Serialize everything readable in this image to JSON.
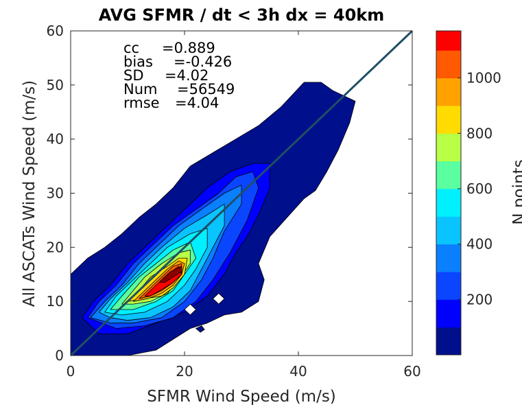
{
  "chart_data": {
    "type": "heatmap",
    "subtype": "filled-contour-density",
    "title": "AVG SFMR / dt < 3h dx = 40km",
    "xlabel": "SFMR Wind Speed (m/s)",
    "ylabel": "All ASCATs Wind Speed (m/s)",
    "xlim": [
      0,
      60
    ],
    "ylim": [
      0,
      60
    ],
    "x_ticks": [
      "0",
      "20",
      "40",
      "60"
    ],
    "y_ticks": [
      "0",
      "10",
      "20",
      "30",
      "40",
      "50",
      "60"
    ],
    "stats": [
      {
        "label": "cc",
        "value": "=0.889"
      },
      {
        "label": "bias",
        "value": "=-0.426"
      },
      {
        "label": "SD",
        "value": "=4.02"
      },
      {
        "label": "Num",
        "value": "=56549"
      },
      {
        "label": "rmse",
        "value": "=4.04"
      }
    ],
    "reference_line": {
      "x": [
        0,
        60
      ],
      "y": [
        0,
        60
      ],
      "color": "#1f4f66"
    },
    "colorbar": {
      "label": "N points",
      "range": [
        0,
        1170
      ],
      "ticks": [
        "200",
        "400",
        "600",
        "800",
        "1000"
      ],
      "tick_values": [
        200,
        400,
        600,
        800,
        1000
      ],
      "levels": [
        0,
        100,
        200,
        300,
        400,
        500,
        600,
        700,
        800,
        900,
        1000,
        1100,
        1170
      ],
      "colors": [
        "#000f8c",
        "#0000ff",
        "#0a45ff",
        "#0a7fff",
        "#0ac4ff",
        "#00f0ff",
        "#5affa0",
        "#b9ff45",
        "#ffdb00",
        "#ffa200",
        "#ff5a00",
        "#ff0000",
        "#8a0000"
      ]
    },
    "contours": [
      {
        "level": 1,
        "color": "#000f8c",
        "points": [
          [
            0,
            0
          ],
          [
            0,
            15
          ],
          [
            3,
            18
          ],
          [
            6,
            20
          ],
          [
            9,
            22.5
          ],
          [
            12,
            25.5
          ],
          [
            15,
            28
          ],
          [
            18,
            31
          ],
          [
            21,
            35
          ],
          [
            25,
            37.5
          ],
          [
            29,
            40
          ],
          [
            33,
            42.5
          ],
          [
            37,
            46
          ],
          [
            41,
            50.5
          ],
          [
            44,
            50.5
          ],
          [
            46,
            49
          ],
          [
            50,
            47
          ],
          [
            49,
            43
          ],
          [
            47,
            38
          ],
          [
            45,
            34
          ],
          [
            43,
            30.5
          ],
          [
            41,
            29
          ],
          [
            38,
            25.5
          ],
          [
            35,
            22
          ],
          [
            33,
            17
          ],
          [
            34,
            14
          ],
          [
            33,
            10
          ],
          [
            30,
            8
          ],
          [
            27,
            7.5
          ],
          [
            24,
            6
          ],
          [
            21,
            5
          ],
          [
            18,
            3
          ],
          [
            15,
            1
          ],
          [
            10,
            0
          ]
        ]
      },
      {
        "level": 2,
        "color": "#0000ff",
        "points": [
          [
            2,
            7
          ],
          [
            4,
            10
          ],
          [
            7,
            13
          ],
          [
            10,
            17
          ],
          [
            14,
            21
          ],
          [
            18,
            25
          ],
          [
            21,
            28
          ],
          [
            24,
            31
          ],
          [
            28,
            34
          ],
          [
            32,
            35.5
          ],
          [
            35,
            35.5
          ],
          [
            35,
            31
          ],
          [
            33,
            26
          ],
          [
            31,
            22
          ],
          [
            29,
            19
          ],
          [
            27,
            15
          ],
          [
            24,
            11
          ],
          [
            20,
            8
          ],
          [
            15,
            6
          ],
          [
            10,
            4
          ],
          [
            5,
            4
          ]
        ]
      },
      {
        "level": 3,
        "color": "#0a45ff",
        "points": [
          [
            3,
            7
          ],
          [
            5,
            10
          ],
          [
            8,
            13
          ],
          [
            11,
            17
          ],
          [
            15,
            21
          ],
          [
            18,
            24
          ],
          [
            22,
            27
          ],
          [
            26,
            30
          ],
          [
            29,
            33
          ],
          [
            32,
            34
          ],
          [
            33,
            31
          ],
          [
            31,
            25
          ],
          [
            28,
            19
          ],
          [
            25,
            14
          ],
          [
            22,
            10
          ],
          [
            18,
            7
          ],
          [
            13,
            5.5
          ],
          [
            8,
            5
          ]
        ]
      },
      {
        "level": 4,
        "color": "#0a7fff",
        "points": [
          [
            3.5,
            7
          ],
          [
            6,
            10
          ],
          [
            9,
            13
          ],
          [
            12,
            17
          ],
          [
            15,
            20
          ],
          [
            19,
            24
          ],
          [
            23,
            27
          ],
          [
            27,
            30
          ],
          [
            30,
            31.5
          ],
          [
            30,
            28
          ],
          [
            27,
            23
          ],
          [
            25,
            18
          ],
          [
            23,
            14
          ],
          [
            20,
            10
          ],
          [
            16,
            7
          ],
          [
            11,
            6
          ],
          [
            7,
            6
          ]
        ]
      },
      {
        "level": 5,
        "color": "#0ac4ff",
        "points": [
          [
            5,
            8
          ],
          [
            7,
            10.5
          ],
          [
            10,
            13.5
          ],
          [
            13,
            17
          ],
          [
            16,
            20
          ],
          [
            20,
            23.5
          ],
          [
            24,
            26
          ],
          [
            27,
            28
          ],
          [
            27,
            24
          ],
          [
            25,
            20
          ],
          [
            23,
            16
          ],
          [
            21,
            12
          ],
          [
            18,
            9
          ],
          [
            14,
            7
          ],
          [
            10,
            6.5
          ],
          [
            7,
            7
          ]
        ]
      },
      {
        "level": 6,
        "color": "#00f0ff",
        "points": [
          [
            6,
            8
          ],
          [
            8,
            11
          ],
          [
            11,
            14
          ],
          [
            14,
            17
          ],
          [
            17,
            20
          ],
          [
            21,
            22.5
          ],
          [
            24,
            23.5
          ],
          [
            24,
            20
          ],
          [
            22,
            16
          ],
          [
            20,
            13
          ],
          [
            17,
            10
          ],
          [
            13,
            8
          ],
          [
            9,
            7.5
          ]
        ]
      },
      {
        "level": 7,
        "color": "#5affa0",
        "points": [
          [
            7,
            8.5
          ],
          [
            9,
            11
          ],
          [
            12,
            14.5
          ],
          [
            15,
            17
          ],
          [
            18,
            19.5
          ],
          [
            21,
            21
          ],
          [
            22,
            18
          ],
          [
            20,
            15
          ],
          [
            18,
            12
          ],
          [
            15,
            10
          ],
          [
            11,
            8.5
          ]
        ]
      },
      {
        "level": 8,
        "color": "#b9ff45",
        "points": [
          [
            9,
            9.5
          ],
          [
            11,
            12
          ],
          [
            13,
            14.5
          ],
          [
            16,
            17
          ],
          [
            19,
            19
          ],
          [
            21,
            19.5
          ],
          [
            21,
            17
          ],
          [
            19,
            14
          ],
          [
            17,
            11.5
          ],
          [
            14,
            10
          ],
          [
            11,
            9.5
          ]
        ]
      },
      {
        "level": 9,
        "color": "#ffdb00",
        "points": [
          [
            10,
            10
          ],
          [
            12,
            12
          ],
          [
            14,
            14.5
          ],
          [
            17,
            16.5
          ],
          [
            19,
            18
          ],
          [
            20.5,
            18
          ],
          [
            20,
            15
          ],
          [
            18,
            12.5
          ],
          [
            16,
            11
          ],
          [
            13,
            10.5
          ]
        ]
      },
      {
        "level": 10,
        "color": "#ffa200",
        "points": [
          [
            11,
            10
          ],
          [
            13,
            12
          ],
          [
            15,
            14
          ],
          [
            17,
            16
          ],
          [
            19,
            17.5
          ],
          [
            20,
            17
          ],
          [
            19.5,
            15
          ],
          [
            18,
            13
          ],
          [
            16,
            11.5
          ],
          [
            13.5,
            10.5
          ]
        ]
      },
      {
        "level": 11,
        "color": "#ff5a00",
        "points": [
          [
            12,
            10.5
          ],
          [
            14,
            12.5
          ],
          [
            16,
            14.5
          ],
          [
            18,
            16.5
          ],
          [
            19.5,
            17
          ],
          [
            19.5,
            15
          ],
          [
            18,
            13.5
          ],
          [
            16,
            12
          ],
          [
            14,
            11
          ]
        ]
      },
      {
        "level": 12,
        "color": "#ff0000",
        "points": [
          [
            13,
            11
          ],
          [
            15,
            13
          ],
          [
            17,
            15
          ],
          [
            19,
            16.5
          ],
          [
            19.5,
            15
          ],
          [
            18,
            13.5
          ],
          [
            16,
            12.2
          ],
          [
            14,
            11
          ]
        ]
      },
      {
        "level": 13,
        "color": "#8a0000",
        "points": [
          [
            15.5,
            13.5
          ],
          [
            17.5,
            15.5
          ],
          [
            19.5,
            16.5
          ],
          [
            19.5,
            15.5
          ],
          [
            18,
            14.5
          ],
          [
            16.5,
            13.5
          ]
        ]
      }
    ],
    "holes": [
      {
        "color": "#ffffff",
        "points": [
          [
            25,
            10.5
          ],
          [
            26,
            11.5
          ],
          [
            27,
            10.5
          ],
          [
            26,
            9.5
          ]
        ]
      },
      {
        "color": "#ffffff",
        "points": [
          [
            20,
            8.5
          ],
          [
            21,
            9.5
          ],
          [
            22,
            8.5
          ],
          [
            21,
            7.5
          ]
        ]
      }
    ],
    "islands": [
      {
        "color": "#000f8c",
        "points": [
          [
            22,
            5
          ],
          [
            23,
            5.5
          ],
          [
            23.5,
            4.8
          ],
          [
            22.8,
            4.3
          ]
        ]
      }
    ]
  }
}
